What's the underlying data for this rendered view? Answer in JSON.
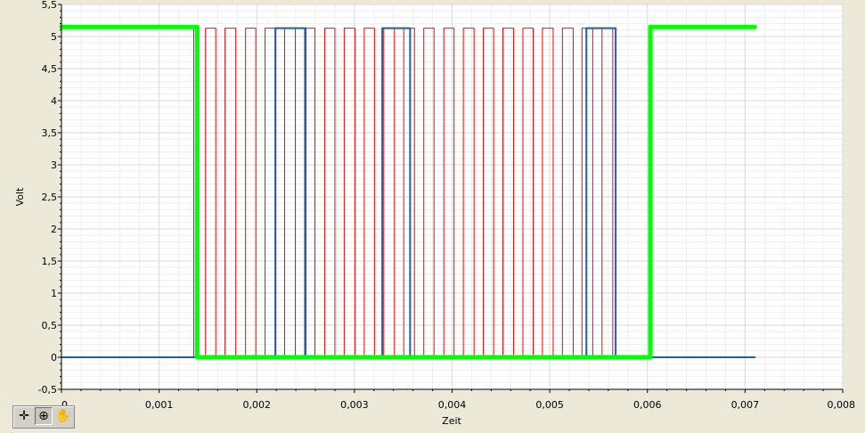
{
  "chart_data": {
    "type": "line",
    "xlabel": "Zeit",
    "ylabel": "Volt",
    "xlim": [
      0,
      0.008
    ],
    "ylim": [
      -0.5,
      5.5
    ],
    "x_ticks": [
      0,
      0.001,
      0.002,
      0.003,
      0.004,
      0.005,
      0.006,
      0.007,
      0.008
    ],
    "x_tick_labels": [
      "0",
      "0,001",
      "0,002",
      "0,003",
      "0,004",
      "0,005",
      "0,006",
      "0,007",
      "0,008"
    ],
    "y_ticks": [
      -0.5,
      0,
      0.5,
      1,
      1.5,
      2,
      2.5,
      3,
      3.5,
      4,
      4.5,
      5,
      5.5
    ],
    "y_tick_labels": [
      "-0,5",
      "0",
      "0,5",
      "1",
      "1,5",
      "2",
      "2,5",
      "3",
      "3,5",
      "4",
      "4,5",
      "5",
      "5,5"
    ],
    "grid": true,
    "series": [
      {
        "color": "#ff0000",
        "width": 1,
        "low": 0,
        "high": 5.13,
        "x_start": 0,
        "x_end": 0.00573,
        "pulses": [
          [
            0.001355,
            0.001405
          ],
          [
            0.001475,
            0.00158
          ],
          [
            0.001675,
            0.001785
          ],
          [
            0.001885,
            0.00199
          ],
          [
            0.002085,
            0.002195
          ],
          [
            0.002285,
            0.002395
          ],
          [
            0.00249,
            0.002595
          ],
          [
            0.002695,
            0.0028
          ],
          [
            0.002895,
            0.003005
          ],
          [
            0.0031,
            0.003205
          ],
          [
            0.0033,
            0.00341
          ],
          [
            0.003505,
            0.003615
          ],
          [
            0.00371,
            0.003815
          ],
          [
            0.003915,
            0.00402
          ],
          [
            0.004115,
            0.004225
          ],
          [
            0.00432,
            0.004425
          ],
          [
            0.00452,
            0.00463
          ],
          [
            0.004725,
            0.00483
          ],
          [
            0.004925,
            0.005035
          ],
          [
            0.00513,
            0.00524
          ],
          [
            0.00533,
            0.00544
          ],
          [
            0.005535,
            0.005645
          ]
        ]
      },
      {
        "color": "#1f5fa8",
        "width": 2,
        "low": 0,
        "high": 5.13,
        "x_start": 0,
        "x_end": 0.0071,
        "pulses": [
          [
            0.00219,
            0.0025
          ],
          [
            0.003285,
            0.00357
          ],
          [
            0.005375,
            0.005675
          ]
        ]
      },
      {
        "color": "#00ff00",
        "width": 5,
        "low": 0,
        "high": 5.15,
        "x_start": 0,
        "x_end": 0.0071,
        "start_high": true,
        "low_intervals": [
          [
            0.00139,
            0.00603
          ]
        ]
      }
    ]
  },
  "toolbar": {
    "tools": [
      {
        "name": "cursor-tool-icon",
        "glyph": "✛"
      },
      {
        "name": "zoom-tool-icon",
        "glyph": "⊕"
      },
      {
        "name": "pan-tool-icon",
        "glyph": "✋"
      }
    ]
  }
}
